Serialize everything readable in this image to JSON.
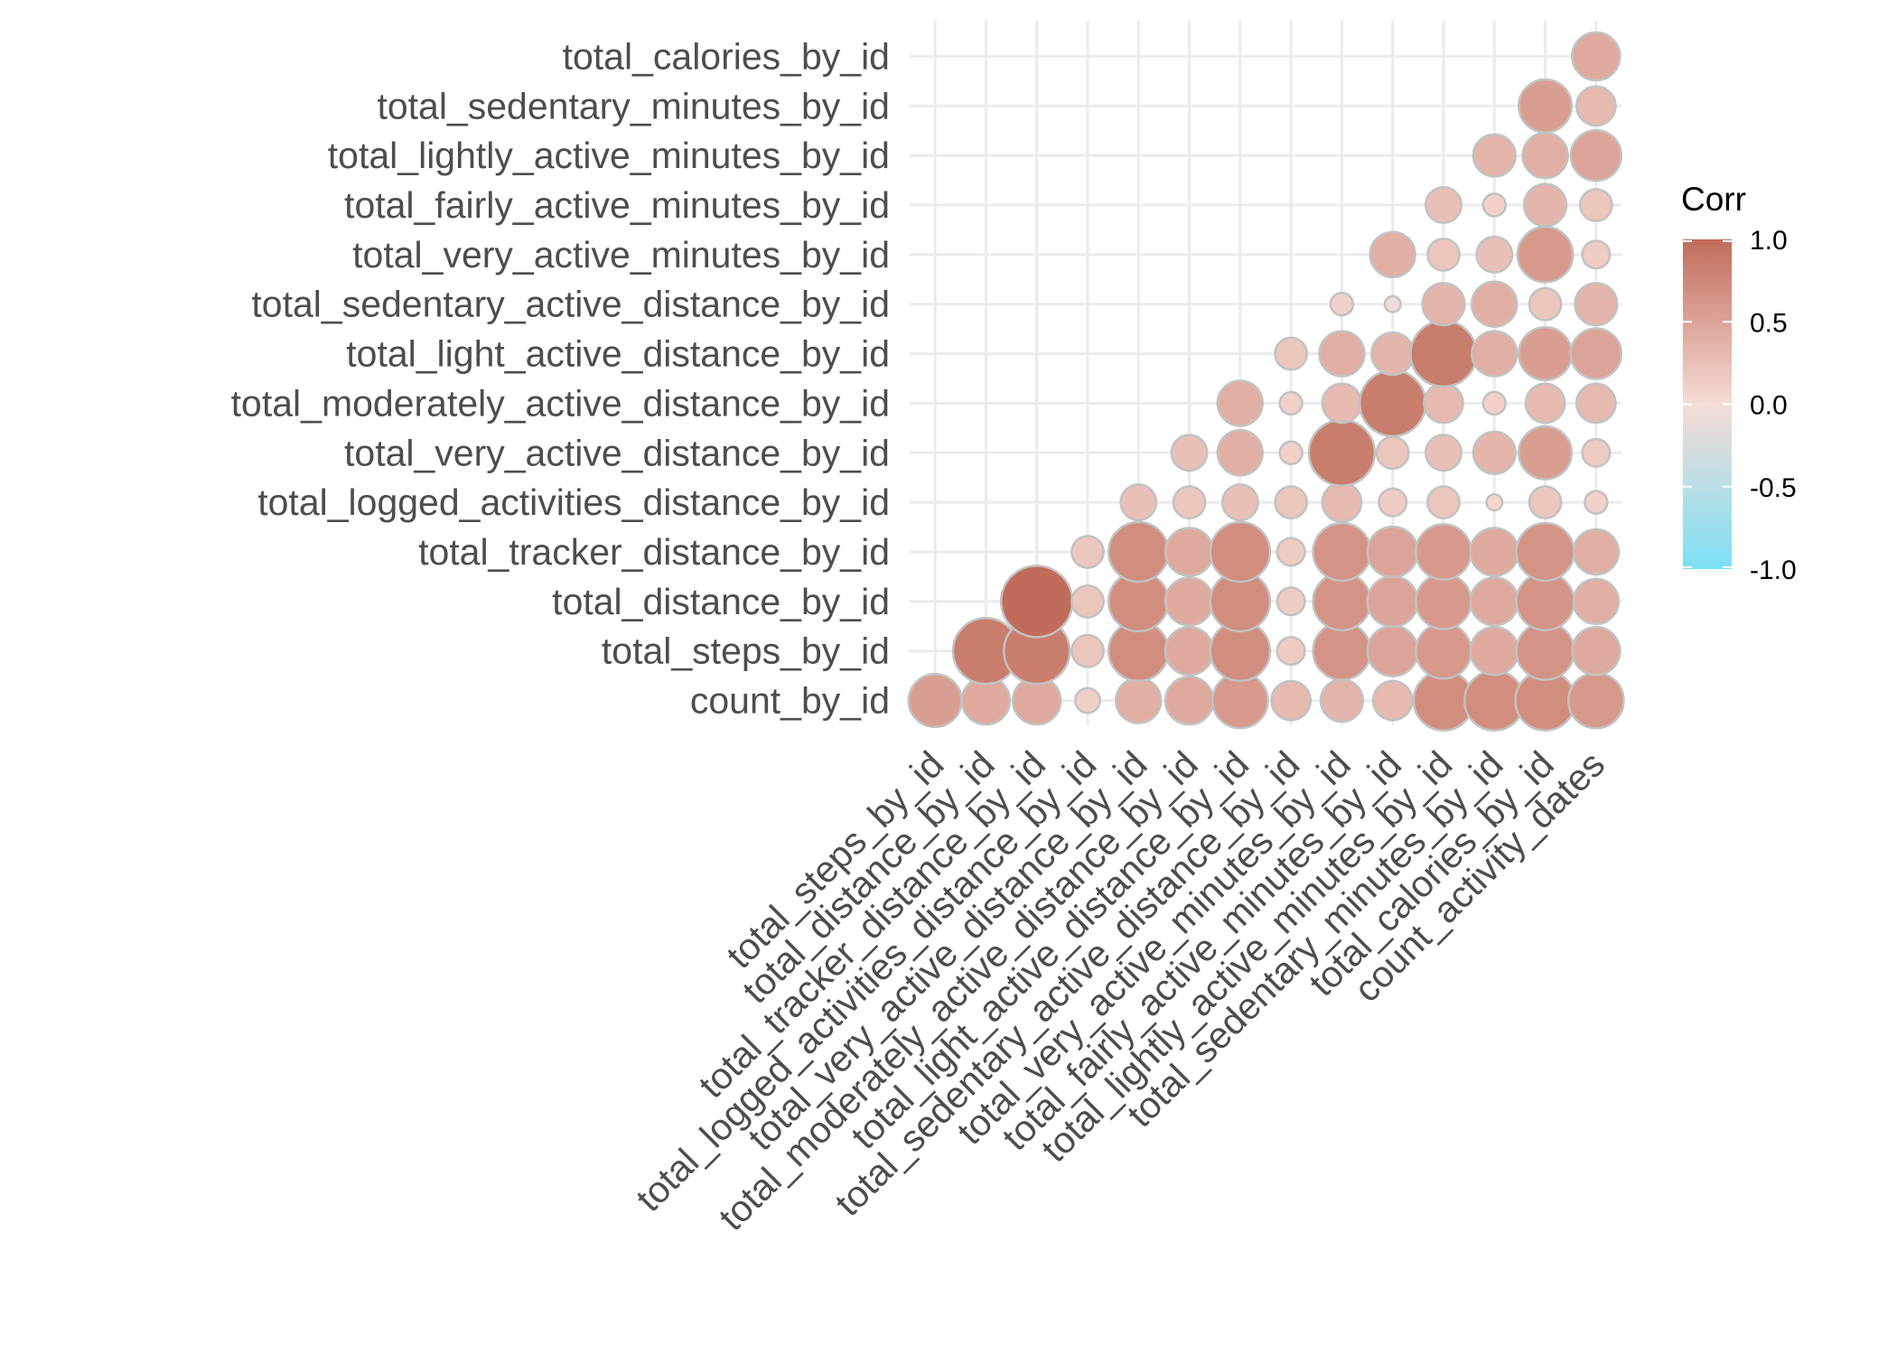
{
  "chart_data": {
    "type": "heatmap",
    "subtype": "correlogram-circles-lower-triangle",
    "title": "",
    "xlabel": "",
    "ylabel": "",
    "x_categories": [
      "total_steps_by_id",
      "total_distance_by_id",
      "total_tracker_distance_by_id",
      "total_logged_activities_distance_by_id",
      "total_very_active_distance_by_id",
      "total_moderately_active_distance_by_id",
      "total_light_active_distance_by_id",
      "total_sedentary_active_distance_by_id",
      "total_very_active_minutes_by_id",
      "total_fairly_active_minutes_by_id",
      "total_lightly_active_minutes_by_id",
      "total_sedentary_minutes_by_id",
      "total_calories_by_id",
      "count_activity_dates"
    ],
    "y_categories": [
      "count_by_id",
      "total_steps_by_id",
      "total_distance_by_id",
      "total_tracker_distance_by_id",
      "total_logged_activities_distance_by_id",
      "total_very_active_distance_by_id",
      "total_moderately_active_distance_by_id",
      "total_light_active_distance_by_id",
      "total_sedentary_active_distance_by_id",
      "total_very_active_minutes_by_id",
      "total_fairly_active_minutes_by_id",
      "total_lightly_active_minutes_by_id",
      "total_sedentary_minutes_by_id",
      "total_calories_by_id"
    ],
    "values": [
      [
        0.55,
        0.45,
        0.45,
        0.12,
        0.4,
        0.45,
        0.6,
        0.3,
        0.35,
        0.3,
        0.7,
        0.7,
        0.7,
        0.6
      ],
      [
        0.85,
        0.85,
        0.2,
        0.7,
        0.45,
        0.7,
        0.15,
        0.65,
        0.5,
        0.6,
        0.45,
        0.65,
        0.45
      ],
      [
        1.0,
        0.2,
        0.7,
        0.45,
        0.7,
        0.15,
        0.65,
        0.5,
        0.6,
        0.45,
        0.65,
        0.4
      ],
      [
        0.2,
        0.7,
        0.45,
        0.7,
        0.15,
        0.65,
        0.5,
        0.6,
        0.45,
        0.65,
        0.4
      ],
      [
        0.25,
        0.2,
        0.25,
        0.2,
        0.3,
        0.15,
        0.2,
        0.05,
        0.2,
        0.1
      ],
      [
        0.25,
        0.4,
        0.1,
        0.85,
        0.2,
        0.25,
        0.35,
        0.55,
        0.15
      ],
      [
        0.4,
        0.1,
        0.3,
        0.85,
        0.3,
        0.1,
        0.3,
        0.3
      ],
      [
        0.2,
        0.4,
        0.35,
        0.85,
        0.4,
        0.55,
        0.5
      ],
      [
        0.1,
        -0.05,
        0.35,
        0.4,
        0.2,
        0.35
      ],
      [
        0.4,
        0.2,
        0.25,
        0.6,
        0.15
      ],
      [
        0.25,
        0.1,
        0.35,
        0.2
      ],
      [
        0.35,
        0.4,
        0.5
      ],
      [
        0.55,
        0.3
      ],
      [
        0.45
      ]
    ],
    "legend": {
      "title": "Corr",
      "ticks": [
        "1.0",
        "0.5",
        "0.0",
        "-0.5",
        "-1.0"
      ],
      "range": [
        -1.0,
        1.0
      ],
      "placement": "right"
    },
    "colors": {
      "low": "#7ddff5",
      "mid": "#f6dcd6",
      "high": "#c16c5a",
      "grid": "#ebebeb",
      "circle_outline": "#c2c2c2"
    },
    "grid": true
  }
}
